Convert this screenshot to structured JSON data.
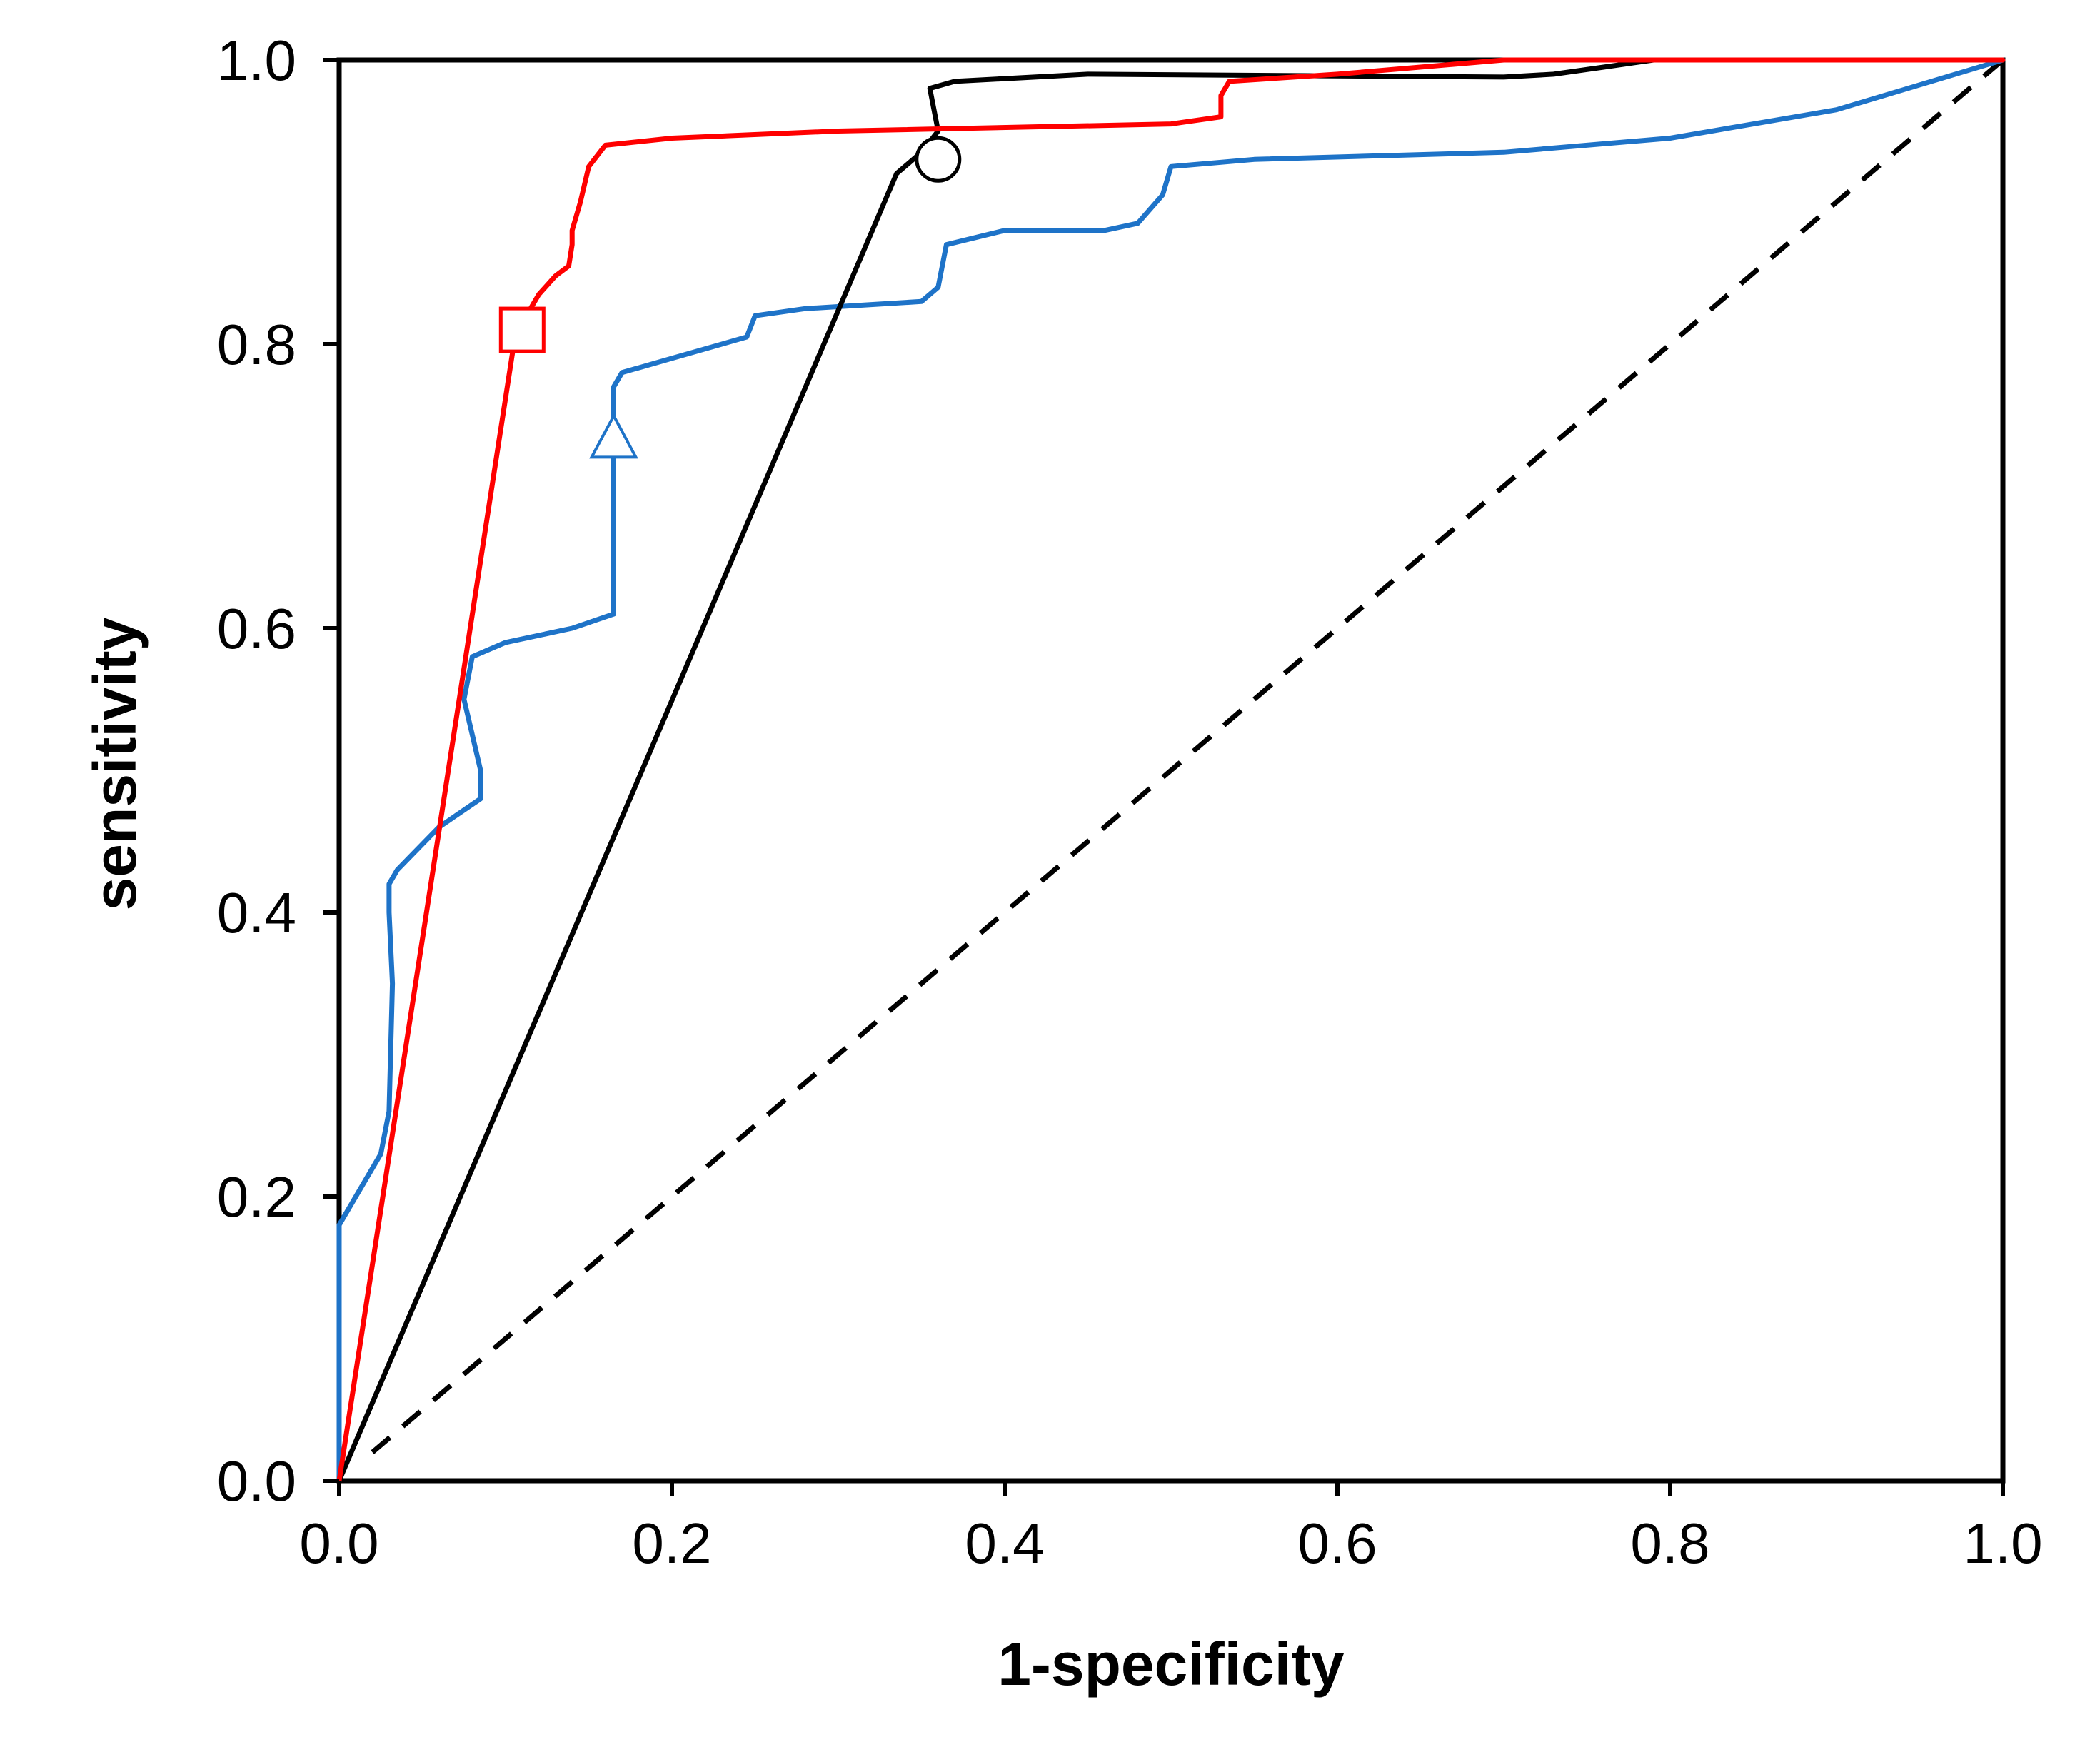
{
  "chart_data": {
    "type": "line",
    "title": "",
    "xlabel": "1-specificity",
    "ylabel": "sensitivity",
    "xlim": [
      0,
      1
    ],
    "ylim": [
      0,
      1
    ],
    "grid": false,
    "x_ticks": [
      "0.0",
      "0.2",
      "0.4",
      "0.6",
      "0.8",
      "1.0"
    ],
    "y_ticks": [
      "0.0",
      "0.2",
      "0.4",
      "0.6",
      "0.8",
      "1.0"
    ],
    "series": [
      {
        "name": "black",
        "color": "#000000",
        "style": "solid",
        "points": [
          [
            0,
            0
          ],
          [
            0.335,
            0.92
          ],
          [
            0.35,
            0.935
          ],
          [
            0.36,
            0.95
          ],
          [
            0.355,
            0.98
          ],
          [
            0.37,
            0.985
          ],
          [
            0.45,
            0.99
          ],
          [
            0.7,
            0.988
          ],
          [
            0.73,
            0.99
          ],
          [
            0.76,
            0.995
          ],
          [
            0.79,
            1.0
          ],
          [
            1.0,
            1.0
          ]
        ],
        "marker": {
          "shape": "circle",
          "x": 0.36,
          "y": 0.93,
          "fill": "#ffffff"
        }
      },
      {
        "name": "red",
        "color": "#ff0000",
        "style": "solid",
        "points": [
          [
            0,
            0
          ],
          [
            0.105,
            0.8
          ],
          [
            0.11,
            0.815
          ],
          [
            0.12,
            0.835
          ],
          [
            0.13,
            0.848
          ],
          [
            0.138,
            0.855
          ],
          [
            0.14,
            0.87
          ],
          [
            0.14,
            0.88
          ],
          [
            0.145,
            0.9
          ],
          [
            0.15,
            0.925
          ],
          [
            0.16,
            0.94
          ],
          [
            0.2,
            0.945
          ],
          [
            0.3,
            0.95
          ],
          [
            0.5,
            0.955
          ],
          [
            0.53,
            0.96
          ],
          [
            0.53,
            0.975
          ],
          [
            0.535,
            0.985
          ],
          [
            0.6,
            0.99
          ],
          [
            0.7,
            1.0
          ],
          [
            1.0,
            1.0
          ]
        ],
        "marker": {
          "shape": "square",
          "x": 0.11,
          "y": 0.81,
          "fill": "#ffffff"
        }
      },
      {
        "name": "blue",
        "color": "#1e73c8",
        "style": "solid",
        "points": [
          [
            0,
            0
          ],
          [
            0,
            0.18
          ],
          [
            0.01,
            0.2
          ],
          [
            0.025,
            0.23
          ],
          [
            0.03,
            0.26
          ],
          [
            0.032,
            0.35
          ],
          [
            0.03,
            0.4
          ],
          [
            0.03,
            0.42
          ],
          [
            0.035,
            0.43
          ],
          [
            0.06,
            0.46
          ],
          [
            0.085,
            0.48
          ],
          [
            0.085,
            0.5
          ],
          [
            0.075,
            0.55
          ],
          [
            0.08,
            0.58
          ],
          [
            0.1,
            0.59
          ],
          [
            0.14,
            0.6
          ],
          [
            0.165,
            0.61
          ],
          [
            0.165,
            0.64
          ],
          [
            0.165,
            0.75
          ],
          [
            0.165,
            0.77
          ],
          [
            0.17,
            0.78
          ],
          [
            0.2,
            0.79
          ],
          [
            0.245,
            0.805
          ],
          [
            0.25,
            0.82
          ],
          [
            0.28,
            0.825
          ],
          [
            0.35,
            0.83
          ],
          [
            0.36,
            0.84
          ],
          [
            0.365,
            0.87
          ],
          [
            0.4,
            0.88
          ],
          [
            0.46,
            0.88
          ],
          [
            0.48,
            0.885
          ],
          [
            0.495,
            0.905
          ],
          [
            0.5,
            0.925
          ],
          [
            0.55,
            0.93
          ],
          [
            0.7,
            0.935
          ],
          [
            0.8,
            0.945
          ],
          [
            0.9,
            0.965
          ],
          [
            1.0,
            1.0
          ]
        ],
        "marker": {
          "shape": "triangle",
          "x": 0.165,
          "y": 0.735,
          "fill": "#ffffff"
        }
      },
      {
        "name": "reference",
        "color": "#000000",
        "style": "dashed",
        "points": [
          [
            0,
            0
          ],
          [
            1,
            1
          ]
        ]
      }
    ]
  }
}
